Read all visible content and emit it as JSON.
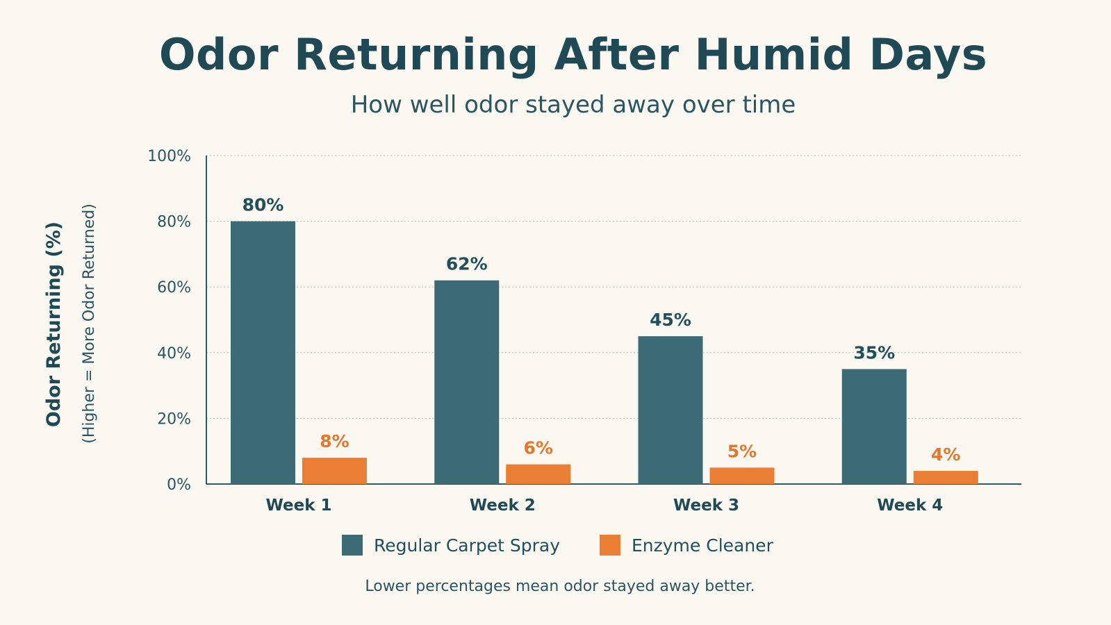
{
  "title": "Odor Returning After Humid Days",
  "subtitle": "How well odor stayed away over time",
  "footnote": "Lower percentages mean odor stayed away better.",
  "chart_data": {
    "type": "bar",
    "categories": [
      "Week 1",
      "Week 2",
      "Week 3",
      "Week 4"
    ],
    "series": [
      {
        "name": "Regular Carpet Spray",
        "values": [
          80,
          62,
          45,
          35
        ],
        "labels": [
          "80%",
          "62%",
          "45%",
          "35%"
        ],
        "color": "#3d6b75"
      },
      {
        "name": "Enzyme Cleaner",
        "values": [
          8,
          6,
          5,
          4
        ],
        "labels": [
          "8%",
          "6%",
          "5%",
          "4%"
        ],
        "color": "#ea7f33"
      }
    ],
    "ylabel": "Odor Returning (%)",
    "ylabel_sub": "(Higher = More Odor Returned)",
    "ylim": [
      0,
      100
    ],
    "yticks": [
      "0%",
      "20%",
      "40%",
      "60%",
      "80%",
      "100%"
    ],
    "grid": true,
    "legend_position": "bottom"
  }
}
